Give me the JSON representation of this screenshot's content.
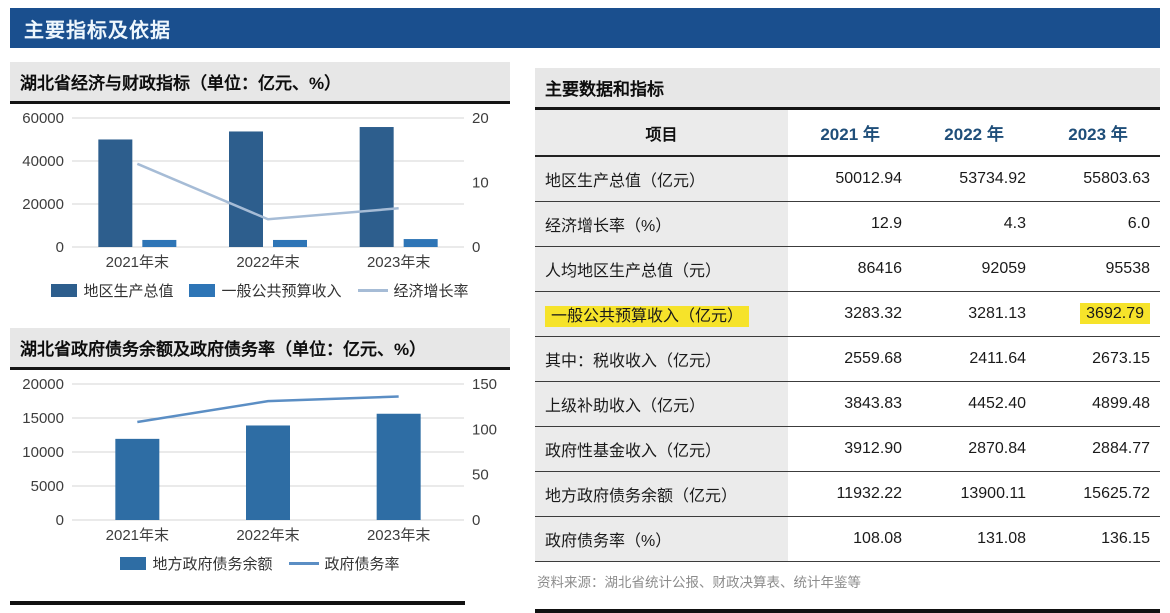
{
  "page": {
    "title": "主要指标及依据"
  },
  "sections": {
    "economy_title": "湖北省经济与财政指标（单位：亿元、%）",
    "debt_title": "湖北省政府债务余额及政府债务率（单位：亿元、%）"
  },
  "colors": {
    "banner_bg": "#1a4f8e",
    "section_header_bg": "#e7e7e7",
    "year_header_text": "#1f4e79",
    "highlight_yellow": "#f6e32a",
    "gdp_bar": "#2d5e8d",
    "budget_bar": "#2e75b6",
    "growth_line": "#a6bcd6",
    "debt_bar": "#2e6da4",
    "debt_ratio_line": "#5b8ec4"
  },
  "chart_data": [
    {
      "type": "bar",
      "title": "湖北省经济与财政指标（单位：亿元、%）",
      "categories": [
        "2021年末",
        "2022年末",
        "2023年末"
      ],
      "series": [
        {
          "name": "地区生产总值",
          "type": "bar",
          "axis": "left",
          "color": "#2d5e8d",
          "values": [
            50012.94,
            53734.92,
            55803.63
          ]
        },
        {
          "name": "一般公共预算收入",
          "type": "bar",
          "axis": "left",
          "color": "#2e75b6",
          "values": [
            3283.32,
            3281.13,
            3692.79
          ]
        },
        {
          "name": "经济增长率",
          "type": "line",
          "axis": "right",
          "color": "#a6bcd6",
          "values": [
            12.9,
            4.3,
            6.0
          ]
        }
      ],
      "left_axis": {
        "min": 0,
        "max": 60000,
        "ticks": [
          0,
          20000,
          40000,
          60000
        ]
      },
      "right_axis": {
        "min": 0,
        "max": 20,
        "ticks": [
          0,
          10,
          20
        ]
      },
      "grid": true,
      "legend_position": "bottom"
    },
    {
      "type": "bar",
      "title": "湖北省政府债务余额及政府债务率（单位：亿元、%）",
      "categories": [
        "2021年末",
        "2022年末",
        "2023年末"
      ],
      "series": [
        {
          "name": "地方政府债务余额",
          "type": "bar",
          "axis": "left",
          "color": "#2e6da4",
          "values": [
            11932.22,
            13900.11,
            15625.72
          ]
        },
        {
          "name": "政府债务率",
          "type": "line",
          "axis": "right",
          "color": "#5b8ec4",
          "values": [
            108.08,
            131.08,
            136.15
          ]
        }
      ],
      "left_axis": {
        "min": 0,
        "max": 20000,
        "ticks": [
          0,
          5000,
          10000,
          15000,
          20000
        ]
      },
      "right_axis": {
        "min": 0,
        "max": 150,
        "ticks": [
          0,
          50,
          100,
          150
        ]
      },
      "grid": true,
      "legend_position": "bottom"
    }
  ],
  "table": {
    "title": "主要数据和指标",
    "columns": [
      "项目",
      "2021 年",
      "2022 年",
      "2023 年"
    ],
    "rows": [
      {
        "label": "地区生产总值（亿元）",
        "values": [
          "50012.94",
          "53734.92",
          "55803.63"
        ]
      },
      {
        "label": "经济增长率（%）",
        "values": [
          "12.9",
          "4.3",
          "6.0"
        ]
      },
      {
        "label": "人均地区生产总值（元）",
        "values": [
          "86416",
          "92059",
          "95538"
        ]
      },
      {
        "label": "一般公共预算收入（亿元）",
        "values": [
          "3283.32",
          "3281.13",
          "3692.79"
        ],
        "label_highlight": true,
        "value_highlights": [
          2
        ]
      },
      {
        "label": "其中：税收收入（亿元）",
        "values": [
          "2559.68",
          "2411.64",
          "2673.15"
        ]
      },
      {
        "label": "上级补助收入（亿元）",
        "values": [
          "3843.83",
          "4452.40",
          "4899.48"
        ]
      },
      {
        "label": "政府性基金收入（亿元）",
        "values": [
          "3912.90",
          "2870.84",
          "2884.77"
        ]
      },
      {
        "label": "地方政府债务余额（亿元）",
        "values": [
          "11932.22",
          "13900.11",
          "15625.72"
        ]
      },
      {
        "label": "政府债务率（%）",
        "values": [
          "108.08",
          "131.08",
          "136.15"
        ]
      }
    ],
    "source": "资料来源：湖北省统计公报、财政决算表、统计年鉴等"
  }
}
